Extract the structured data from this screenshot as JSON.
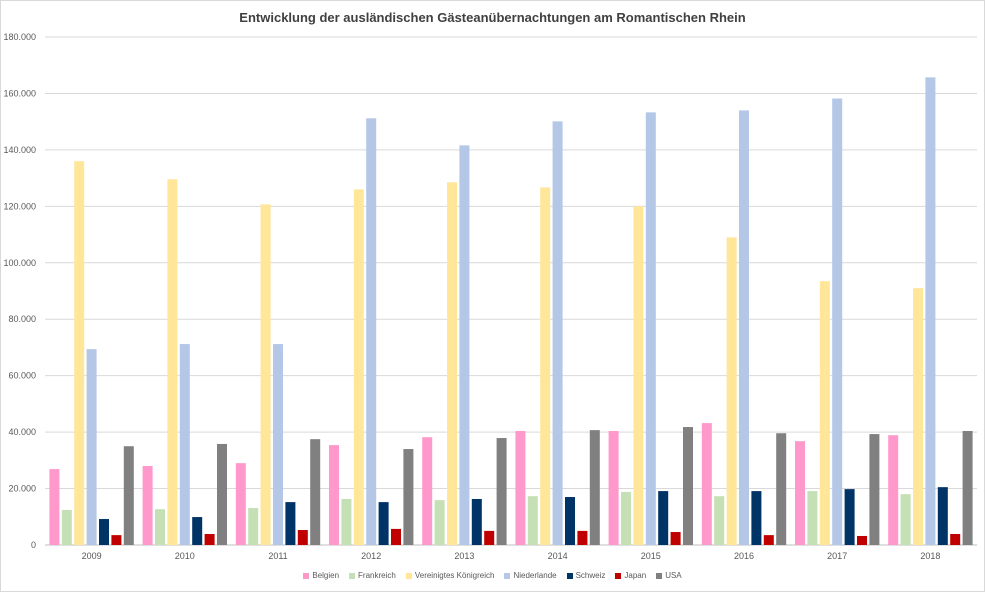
{
  "chart_data": {
    "type": "bar",
    "title": "Entwicklung der ausländischen Gästeanübernachtungen am Romantischen Rhein",
    "xlabel": "",
    "ylabel": "",
    "ylim": [
      0,
      180000
    ],
    "yticks": [
      0,
      20000,
      40000,
      60000,
      80000,
      100000,
      120000,
      140000,
      160000,
      180000
    ],
    "ytick_labels": [
      "0",
      "20.000",
      "40.000",
      "60.000",
      "80.000",
      "100.000",
      "120.000",
      "140.000",
      "160.000",
      "180.000"
    ],
    "grid": true,
    "legend_position": "bottom",
    "categories": [
      "2009",
      "2010",
      "2011",
      "2012",
      "2013",
      "2014",
      "2015",
      "2016",
      "2017",
      "2018"
    ],
    "series": [
      {
        "name": "Belgien",
        "color": "#ff99cc",
        "values": [
          26900,
          28000,
          29000,
          35400,
          38200,
          40400,
          40400,
          43200,
          36800,
          38900
        ]
      },
      {
        "name": "Frankreich",
        "color": "#c5e0b4",
        "values": [
          12400,
          12700,
          13100,
          16300,
          15900,
          17300,
          18800,
          17300,
          19100,
          18000
        ]
      },
      {
        "name": "Vereinigtes Königreich",
        "color": "#ffe699",
        "values": [
          136000,
          129600,
          120700,
          126000,
          128500,
          126700,
          120000,
          109000,
          93500,
          91000
        ]
      },
      {
        "name": "Niederlande",
        "color": "#b4c7e7",
        "values": [
          69400,
          71200,
          71200,
          151200,
          141600,
          150100,
          153300,
          154000,
          158200,
          165700
        ]
      },
      {
        "name": "Schweiz",
        "color": "#003366",
        "values": [
          9200,
          9900,
          15200,
          15200,
          16300,
          17000,
          19100,
          19100,
          19800,
          20500
        ]
      },
      {
        "name": "Japan",
        "color": "#c00000",
        "values": [
          3500,
          3900,
          5300,
          5700,
          5000,
          5000,
          4600,
          3500,
          3200,
          3900
        ]
      },
      {
        "name": "USA",
        "color": "#808080",
        "values": [
          35000,
          35800,
          37500,
          34000,
          37900,
          40700,
          41800,
          39600,
          39300,
          40400
        ]
      }
    ]
  }
}
